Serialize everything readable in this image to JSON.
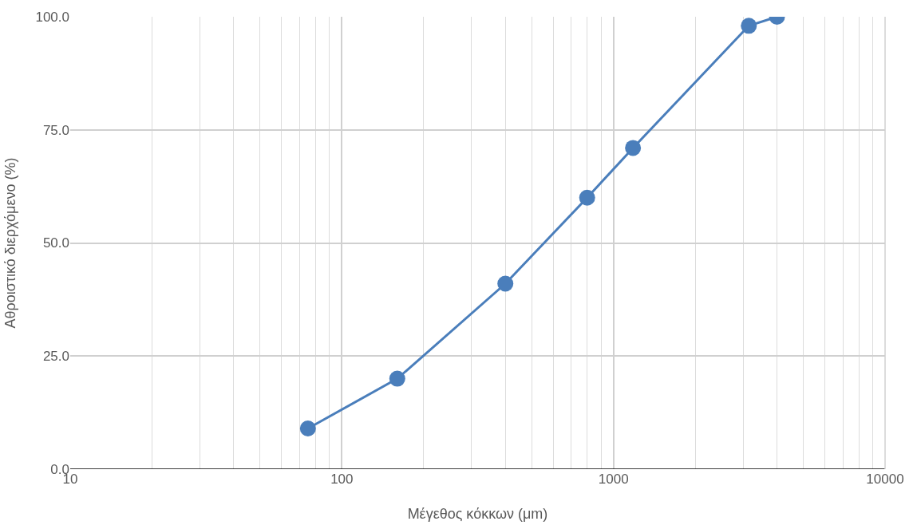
{
  "chart_data": {
    "type": "line",
    "xlabel": "Μέγεθος κόκκων (μm)",
    "ylabel": "Αθροιστικό διερχόμενο (%)",
    "x": [
      75,
      160,
      400,
      800,
      1180,
      3150,
      4000
    ],
    "series": [
      {
        "color": "#4a7ebb",
        "values": [
          9,
          20,
          41,
          60,
          71,
          98,
          100
        ]
      }
    ],
    "xlim": [
      10,
      10000
    ],
    "xticks": [
      10,
      100,
      1000,
      10000
    ],
    "ylim": [
      0,
      100
    ],
    "yticks": [
      {
        "value": 0,
        "label": "0.0"
      },
      {
        "value": 25,
        "label": "25.0"
      },
      {
        "value": 50,
        "label": "50.0"
      },
      {
        "value": 75,
        "label": "75.0"
      },
      {
        "value": 100,
        "label": "100.0"
      }
    ],
    "log": "x",
    "grid": true,
    "marker": "circle",
    "line_style": "solid"
  }
}
